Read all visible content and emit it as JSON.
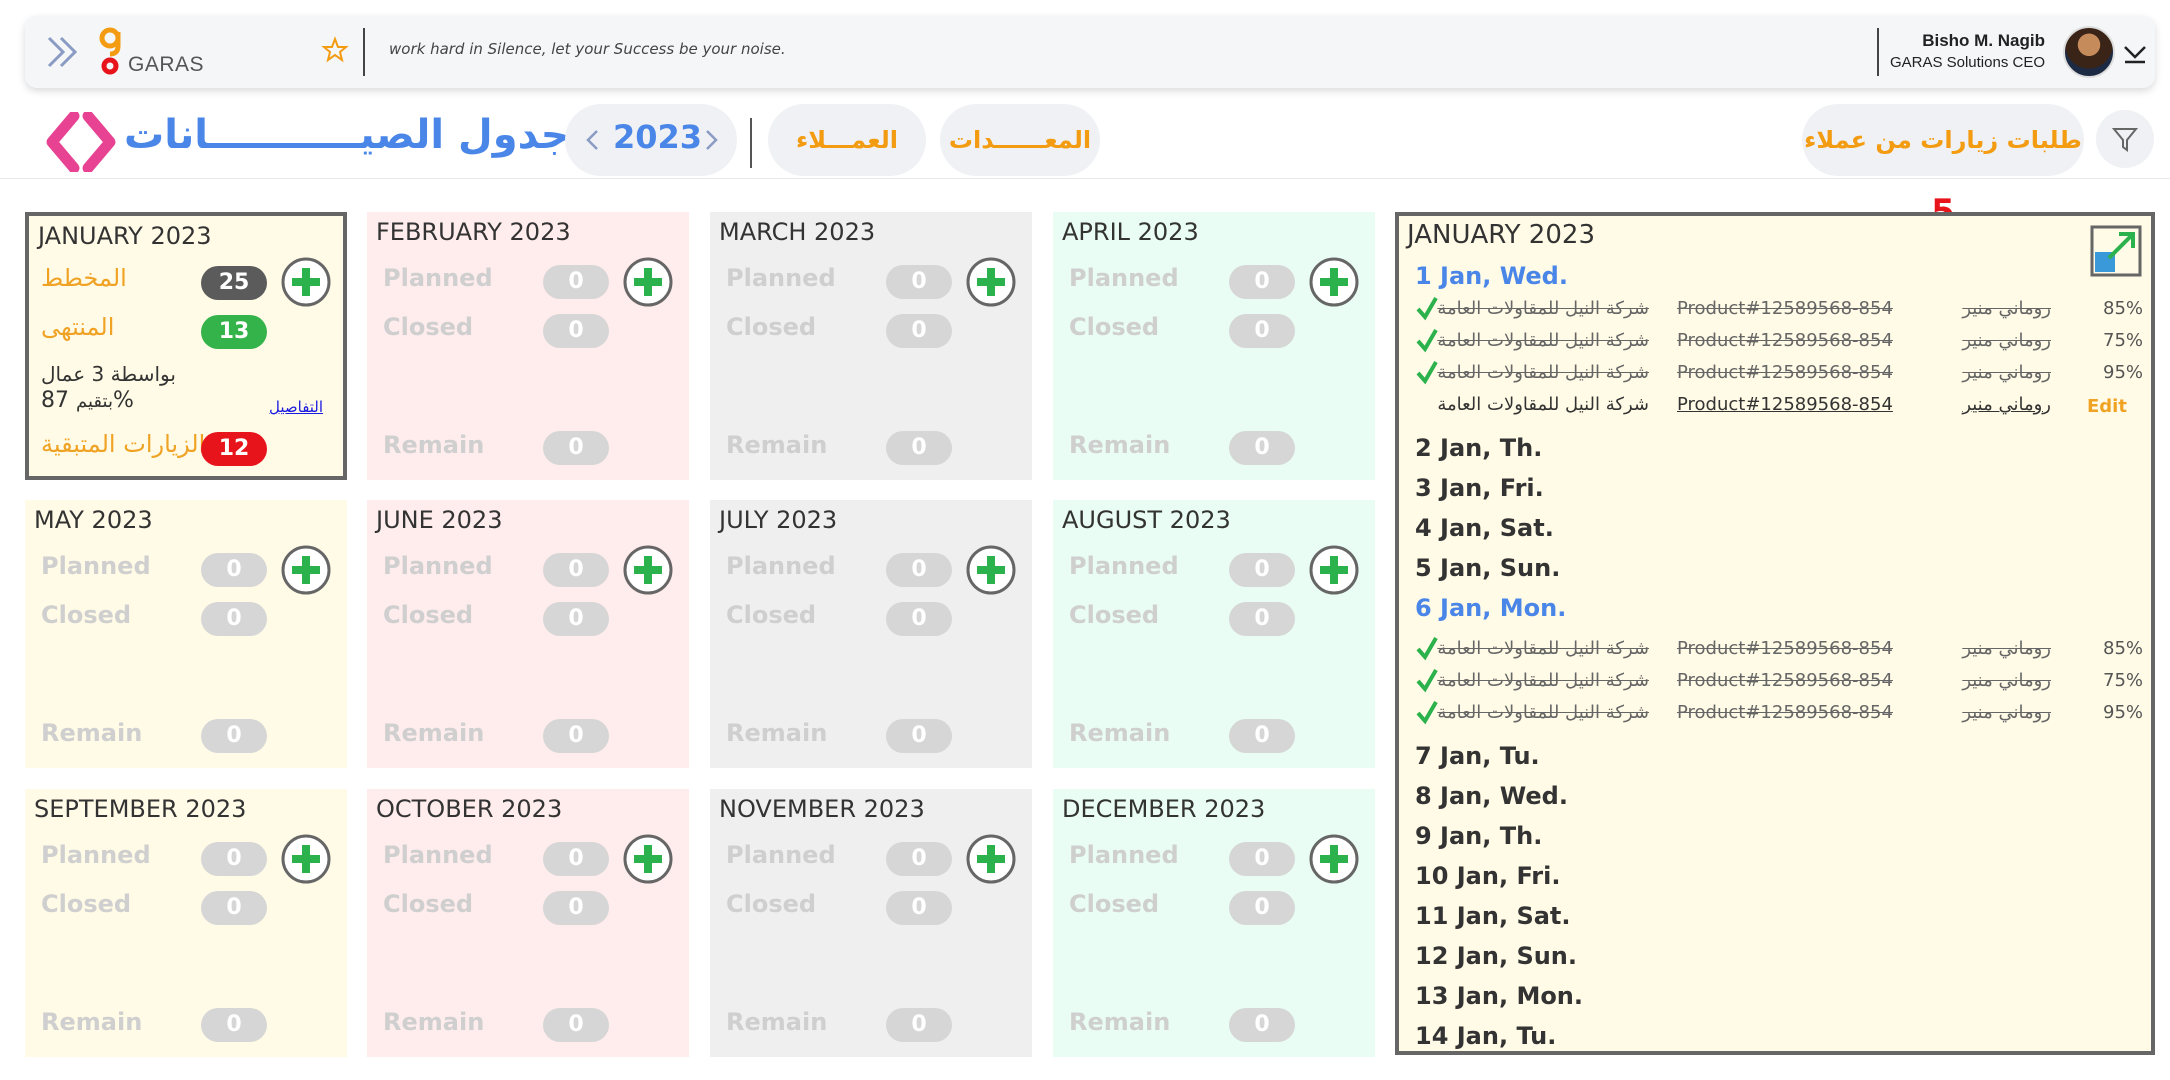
{
  "header": {
    "motto": "work hard in Silence, let your Success be your noise.",
    "logo_text": "GARAS",
    "user": {
      "name": "Bisho M. Nagib",
      "role": "GARAS Solutions CEO"
    }
  },
  "toolbar": {
    "title": "جدول الصيـــــــــــانات",
    "year": "2023",
    "clients_label": "العمـــلاء",
    "equipment_label": "المعــــــدات",
    "requests_label": "طلبات زيارات من عملاء",
    "requests_count": "5"
  },
  "months": [
    {
      "name": "JANUARY 2023",
      "active": true,
      "planned_label": "المخطط",
      "closed_label": "المنتهى",
      "remain_label": "الزيارات المتبقية",
      "planned": "25",
      "closed": "13",
      "remain": "12",
      "workers_text": "بواسطة 3 عمال",
      "rating_value": "87",
      "rating_percent": "%",
      "rating_word": "بتقيم",
      "details_link": "التفاصيل"
    },
    {
      "name": "FEBRUARY 2023",
      "planned_label": "Planned",
      "closed_label": "Closed",
      "remain_label": "Remain",
      "planned": "0",
      "closed": "0",
      "remain": "0"
    },
    {
      "name": "MARCH 2023",
      "planned_label": "Planned",
      "closed_label": "Closed",
      "remain_label": "Remain",
      "planned": "0",
      "closed": "0",
      "remain": "0"
    },
    {
      "name": "APRIL 2023",
      "planned_label": "Planned",
      "closed_label": "Closed",
      "remain_label": "Remain",
      "planned": "0",
      "closed": "0",
      "remain": "0"
    },
    {
      "name": "MAY 2023",
      "planned_label": "Planned",
      "closed_label": "Closed",
      "remain_label": "Remain",
      "planned": "0",
      "closed": "0",
      "remain": "0"
    },
    {
      "name": "JUNE 2023",
      "planned_label": "Planned",
      "closed_label": "Closed",
      "remain_label": "Remain",
      "planned": "0",
      "closed": "0",
      "remain": "0"
    },
    {
      "name": "JULY 2023",
      "planned_label": "Planned",
      "closed_label": "Closed",
      "remain_label": "Remain",
      "planned": "0",
      "closed": "0",
      "remain": "0"
    },
    {
      "name": "AUGUST 2023",
      "planned_label": "Planned",
      "closed_label": "Closed",
      "remain_label": "Remain",
      "planned": "0",
      "closed": "0",
      "remain": "0"
    },
    {
      "name": "SEPTEMBER 2023",
      "planned_label": "Planned",
      "closed_label": "Closed",
      "remain_label": "Remain",
      "planned": "0",
      "closed": "0",
      "remain": "0"
    },
    {
      "name": "OCTOBER 2023",
      "planned_label": "Planned",
      "closed_label": "Closed",
      "remain_label": "Remain",
      "planned": "0",
      "closed": "0",
      "remain": "0"
    },
    {
      "name": "NOVEMBER 2023",
      "planned_label": "Planned",
      "closed_label": "Closed",
      "remain_label": "Remain",
      "planned": "0",
      "closed": "0",
      "remain": "0"
    },
    {
      "name": "DECEMBER 2023",
      "planned_label": "Planned",
      "closed_label": "Closed",
      "remain_label": "Remain",
      "planned": "0",
      "closed": "0",
      "remain": "0"
    }
  ],
  "detail": {
    "title": "JANUARY 2023",
    "days": [
      "1 Jan, Wed.",
      "2 Jan, Th.",
      "3 Jan, Fri.",
      "4 Jan, Sat.",
      "5 Jan, Sun.",
      "6 Jan, Mon.",
      "7 Jan, Tu.",
      "8 Jan, Wed.",
      "9 Jan, Th.",
      "10 Jan, Fri.",
      "11 Jan, Sat.",
      "12 Jan, Sun.",
      "13 Jan, Mon.",
      "14 Jan, Tu."
    ],
    "visits": [
      {
        "company": "شركة النيل للمقاولات العامة",
        "product": "Product#12589568-854",
        "technician": "روماني منير",
        "percent": "85%",
        "status": "done"
      },
      {
        "company": "شركة النيل للمقاولات العامة",
        "product": "Product#12589568-854",
        "technician": "روماني منير",
        "percent": "75%",
        "status": "done"
      },
      {
        "company": "شركة النيل للمقاولات العامة",
        "product": "Product#12589568-854",
        "technician": "روماني منير",
        "percent": "95%",
        "status": "done"
      },
      {
        "company": "شركة النيل للمقاولات العامة",
        "product": "Product#12589568-854",
        "technician": "روماني منير",
        "action": "Edit",
        "status": "open"
      },
      {
        "company": "شركة النيل للمقاولات العامة",
        "product": "Product#12589568-854",
        "technician": "روماني منير",
        "percent": "85%",
        "status": "done"
      },
      {
        "company": "شركة النيل للمقاولات العامة",
        "product": "Product#12589568-854",
        "technician": "روماني منير",
        "percent": "75%",
        "status": "done"
      },
      {
        "company": "شركة النيل للمقاولات العامة",
        "product": "Product#12589568-854",
        "technician": "روماني منير",
        "percent": "95%",
        "status": "done"
      }
    ]
  },
  "colors": {
    "accent_blue": "#4a86e8",
    "accent_orange": "#f39c12",
    "planned_badge": "#5b5b5b",
    "closed_badge": "#34b34a",
    "remain_badge": "#e8141c",
    "plus_green": "#2bb24c",
    "bracket_pink": "#e84393"
  },
  "icons": [
    "double-chevron-icon",
    "garas-logo-icon",
    "star-icon",
    "user-avatar",
    "chevron-down-icon",
    "bracket-logo-icon",
    "chevron-left-icon",
    "chevron-right-icon",
    "filter-icon",
    "plus-circle-icon",
    "check-icon",
    "expand-icon"
  ]
}
